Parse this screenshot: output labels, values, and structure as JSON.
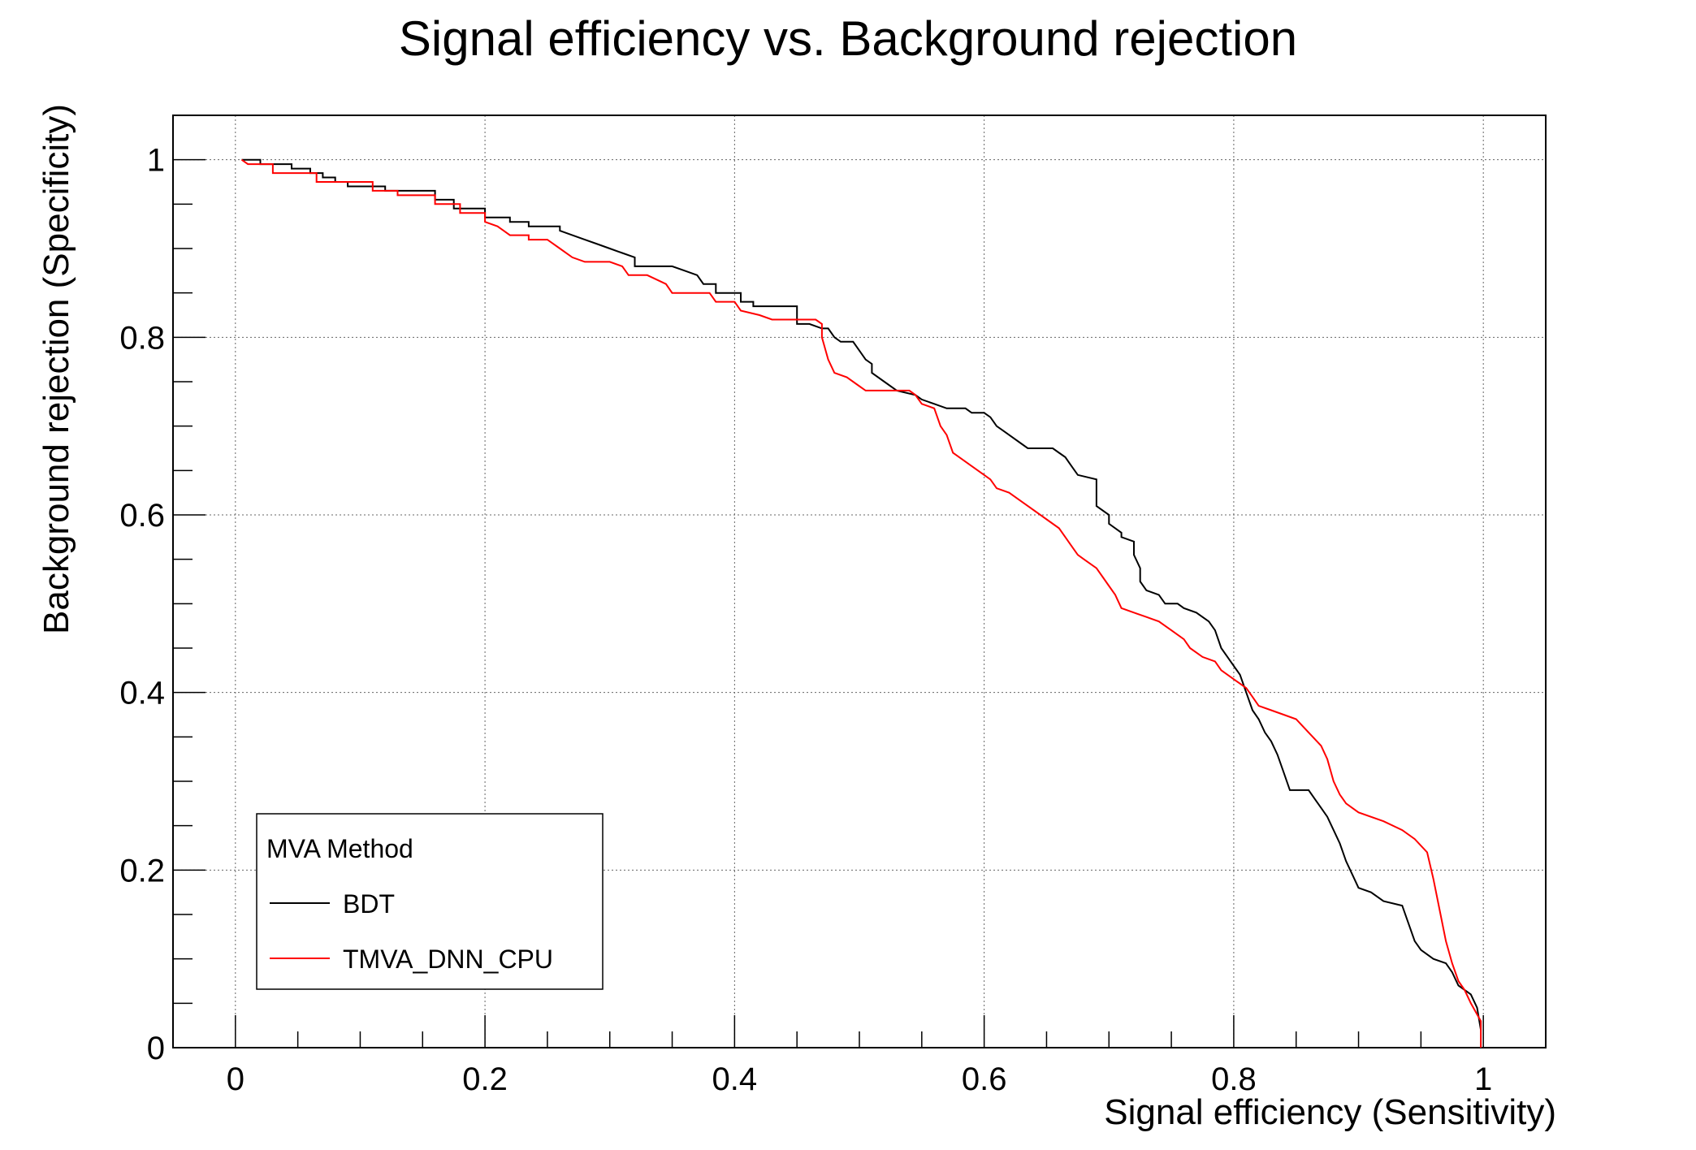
{
  "chart_data": {
    "type": "line",
    "title": "Signal efficiency vs. Background rejection",
    "xlabel": "Signal efficiency (Sensitivity)",
    "ylabel": "Background rejection (Specificity)",
    "xlim": [
      -0.05,
      1.05
    ],
    "ylim": [
      0,
      1.05
    ],
    "x_ticks": [
      0,
      0.2,
      0.4,
      0.6,
      0.8,
      1
    ],
    "x_tick_labels": [
      "0",
      "0.2",
      "0.4",
      "0.6",
      "0.8",
      "1"
    ],
    "y_ticks": [
      0,
      0.2,
      0.4,
      0.6,
      0.8,
      1
    ],
    "y_tick_labels": [
      "0",
      "0.2",
      "0.4",
      "0.6",
      "0.8",
      "1"
    ],
    "grid": true,
    "legend": {
      "title": "MVA Method",
      "placement": "bottom-left"
    },
    "series": [
      {
        "name": "BDT",
        "color": "#000000",
        "points": [
          [
            0.005,
            1.0
          ],
          [
            0.02,
            1.0
          ],
          [
            0.02,
            0.995
          ],
          [
            0.045,
            0.995
          ],
          [
            0.045,
            0.99
          ],
          [
            0.06,
            0.99
          ],
          [
            0.06,
            0.985
          ],
          [
            0.07,
            0.985
          ],
          [
            0.07,
            0.98
          ],
          [
            0.08,
            0.98
          ],
          [
            0.08,
            0.975
          ],
          [
            0.09,
            0.975
          ],
          [
            0.09,
            0.97
          ],
          [
            0.12,
            0.97
          ],
          [
            0.12,
            0.965
          ],
          [
            0.14,
            0.965
          ],
          [
            0.16,
            0.965
          ],
          [
            0.16,
            0.955
          ],
          [
            0.175,
            0.955
          ],
          [
            0.175,
            0.945
          ],
          [
            0.2,
            0.945
          ],
          [
            0.2,
            0.935
          ],
          [
            0.22,
            0.935
          ],
          [
            0.22,
            0.93
          ],
          [
            0.235,
            0.93
          ],
          [
            0.235,
            0.925
          ],
          [
            0.26,
            0.925
          ],
          [
            0.26,
            0.92
          ],
          [
            0.27,
            0.915
          ],
          [
            0.28,
            0.91
          ],
          [
            0.29,
            0.905
          ],
          [
            0.3,
            0.9
          ],
          [
            0.31,
            0.895
          ],
          [
            0.32,
            0.89
          ],
          [
            0.32,
            0.88
          ],
          [
            0.35,
            0.88
          ],
          [
            0.36,
            0.875
          ],
          [
            0.37,
            0.87
          ],
          [
            0.375,
            0.86
          ],
          [
            0.385,
            0.86
          ],
          [
            0.385,
            0.85
          ],
          [
            0.405,
            0.85
          ],
          [
            0.405,
            0.84
          ],
          [
            0.415,
            0.84
          ],
          [
            0.415,
            0.835
          ],
          [
            0.45,
            0.835
          ],
          [
            0.45,
            0.815
          ],
          [
            0.46,
            0.815
          ],
          [
            0.47,
            0.81
          ],
          [
            0.475,
            0.81
          ],
          [
            0.48,
            0.8
          ],
          [
            0.485,
            0.795
          ],
          [
            0.495,
            0.795
          ],
          [
            0.5,
            0.785
          ],
          [
            0.505,
            0.775
          ],
          [
            0.51,
            0.77
          ],
          [
            0.51,
            0.76
          ],
          [
            0.52,
            0.75
          ],
          [
            0.53,
            0.74
          ],
          [
            0.545,
            0.735
          ],
          [
            0.55,
            0.73
          ],
          [
            0.56,
            0.725
          ],
          [
            0.57,
            0.72
          ],
          [
            0.585,
            0.72
          ],
          [
            0.59,
            0.715
          ],
          [
            0.6,
            0.715
          ],
          [
            0.605,
            0.71
          ],
          [
            0.61,
            0.7
          ],
          [
            0.615,
            0.695
          ],
          [
            0.62,
            0.69
          ],
          [
            0.63,
            0.68
          ],
          [
            0.635,
            0.675
          ],
          [
            0.655,
            0.675
          ],
          [
            0.66,
            0.67
          ],
          [
            0.665,
            0.665
          ],
          [
            0.67,
            0.655
          ],
          [
            0.675,
            0.645
          ],
          [
            0.69,
            0.64
          ],
          [
            0.69,
            0.63
          ],
          [
            0.69,
            0.61
          ],
          [
            0.7,
            0.6
          ],
          [
            0.7,
            0.59
          ],
          [
            0.71,
            0.58
          ],
          [
            0.71,
            0.575
          ],
          [
            0.72,
            0.57
          ],
          [
            0.72,
            0.555
          ],
          [
            0.725,
            0.54
          ],
          [
            0.725,
            0.525
          ],
          [
            0.73,
            0.515
          ],
          [
            0.74,
            0.51
          ],
          [
            0.745,
            0.5
          ],
          [
            0.755,
            0.5
          ],
          [
            0.76,
            0.495
          ],
          [
            0.77,
            0.49
          ],
          [
            0.78,
            0.48
          ],
          [
            0.785,
            0.47
          ],
          [
            0.79,
            0.45
          ],
          [
            0.795,
            0.44
          ],
          [
            0.8,
            0.43
          ],
          [
            0.805,
            0.42
          ],
          [
            0.81,
            0.4
          ],
          [
            0.815,
            0.38
          ],
          [
            0.82,
            0.37
          ],
          [
            0.825,
            0.355
          ],
          [
            0.83,
            0.345
          ],
          [
            0.835,
            0.33
          ],
          [
            0.84,
            0.31
          ],
          [
            0.845,
            0.29
          ],
          [
            0.86,
            0.29
          ],
          [
            0.865,
            0.28
          ],
          [
            0.87,
            0.27
          ],
          [
            0.875,
            0.26
          ],
          [
            0.88,
            0.245
          ],
          [
            0.885,
            0.23
          ],
          [
            0.89,
            0.21
          ],
          [
            0.895,
            0.195
          ],
          [
            0.9,
            0.18
          ],
          [
            0.91,
            0.175
          ],
          [
            0.92,
            0.165
          ],
          [
            0.935,
            0.16
          ],
          [
            0.94,
            0.14
          ],
          [
            0.945,
            0.12
          ],
          [
            0.95,
            0.11
          ],
          [
            0.96,
            0.1
          ],
          [
            0.97,
            0.095
          ],
          [
            0.975,
            0.085
          ],
          [
            0.98,
            0.07
          ],
          [
            0.99,
            0.06
          ],
          [
            0.995,
            0.045
          ],
          [
            0.998,
            0.02
          ]
        ]
      },
      {
        "name": "TMVA_DNN_CPU",
        "color": "#ff0000",
        "points": [
          [
            0.005,
            1.0
          ],
          [
            0.01,
            0.995
          ],
          [
            0.03,
            0.995
          ],
          [
            0.03,
            0.985
          ],
          [
            0.065,
            0.985
          ],
          [
            0.065,
            0.975
          ],
          [
            0.11,
            0.975
          ],
          [
            0.11,
            0.965
          ],
          [
            0.13,
            0.965
          ],
          [
            0.13,
            0.96
          ],
          [
            0.16,
            0.96
          ],
          [
            0.16,
            0.95
          ],
          [
            0.18,
            0.95
          ],
          [
            0.18,
            0.94
          ],
          [
            0.2,
            0.94
          ],
          [
            0.2,
            0.93
          ],
          [
            0.21,
            0.925
          ],
          [
            0.215,
            0.92
          ],
          [
            0.22,
            0.915
          ],
          [
            0.235,
            0.915
          ],
          [
            0.235,
            0.91
          ],
          [
            0.25,
            0.91
          ],
          [
            0.26,
            0.9
          ],
          [
            0.27,
            0.89
          ],
          [
            0.28,
            0.885
          ],
          [
            0.3,
            0.885
          ],
          [
            0.31,
            0.88
          ],
          [
            0.315,
            0.87
          ],
          [
            0.33,
            0.87
          ],
          [
            0.345,
            0.86
          ],
          [
            0.35,
            0.85
          ],
          [
            0.38,
            0.85
          ],
          [
            0.385,
            0.84
          ],
          [
            0.4,
            0.84
          ],
          [
            0.405,
            0.83
          ],
          [
            0.42,
            0.825
          ],
          [
            0.43,
            0.82
          ],
          [
            0.465,
            0.82
          ],
          [
            0.47,
            0.815
          ],
          [
            0.47,
            0.8
          ],
          [
            0.475,
            0.775
          ],
          [
            0.48,
            0.76
          ],
          [
            0.49,
            0.755
          ],
          [
            0.5,
            0.745
          ],
          [
            0.505,
            0.74
          ],
          [
            0.54,
            0.74
          ],
          [
            0.545,
            0.735
          ],
          [
            0.55,
            0.725
          ],
          [
            0.56,
            0.72
          ],
          [
            0.565,
            0.7
          ],
          [
            0.57,
            0.69
          ],
          [
            0.575,
            0.67
          ],
          [
            0.58,
            0.665
          ],
          [
            0.59,
            0.655
          ],
          [
            0.6,
            0.645
          ],
          [
            0.605,
            0.64
          ],
          [
            0.61,
            0.63
          ],
          [
            0.62,
            0.625
          ],
          [
            0.63,
            0.615
          ],
          [
            0.64,
            0.605
          ],
          [
            0.65,
            0.595
          ],
          [
            0.66,
            0.585
          ],
          [
            0.665,
            0.575
          ],
          [
            0.67,
            0.565
          ],
          [
            0.675,
            0.555
          ],
          [
            0.68,
            0.55
          ],
          [
            0.69,
            0.54
          ],
          [
            0.695,
            0.53
          ],
          [
            0.7,
            0.52
          ],
          [
            0.705,
            0.51
          ],
          [
            0.71,
            0.495
          ],
          [
            0.72,
            0.49
          ],
          [
            0.73,
            0.485
          ],
          [
            0.74,
            0.48
          ],
          [
            0.75,
            0.47
          ],
          [
            0.76,
            0.46
          ],
          [
            0.765,
            0.45
          ],
          [
            0.775,
            0.44
          ],
          [
            0.785,
            0.435
          ],
          [
            0.79,
            0.425
          ],
          [
            0.8,
            0.415
          ],
          [
            0.81,
            0.405
          ],
          [
            0.815,
            0.395
          ],
          [
            0.82,
            0.385
          ],
          [
            0.83,
            0.38
          ],
          [
            0.84,
            0.375
          ],
          [
            0.85,
            0.37
          ],
          [
            0.86,
            0.355
          ],
          [
            0.87,
            0.34
          ],
          [
            0.875,
            0.325
          ],
          [
            0.88,
            0.3
          ],
          [
            0.885,
            0.285
          ],
          [
            0.89,
            0.275
          ],
          [
            0.9,
            0.265
          ],
          [
            0.92,
            0.255
          ],
          [
            0.935,
            0.245
          ],
          [
            0.945,
            0.235
          ],
          [
            0.955,
            0.22
          ],
          [
            0.96,
            0.19
          ],
          [
            0.965,
            0.155
          ],
          [
            0.97,
            0.12
          ],
          [
            0.975,
            0.095
          ],
          [
            0.98,
            0.075
          ],
          [
            0.985,
            0.065
          ],
          [
            0.99,
            0.05
          ],
          [
            0.998,
            0.03
          ],
          [
            0.998,
            0.0
          ]
        ]
      }
    ]
  }
}
